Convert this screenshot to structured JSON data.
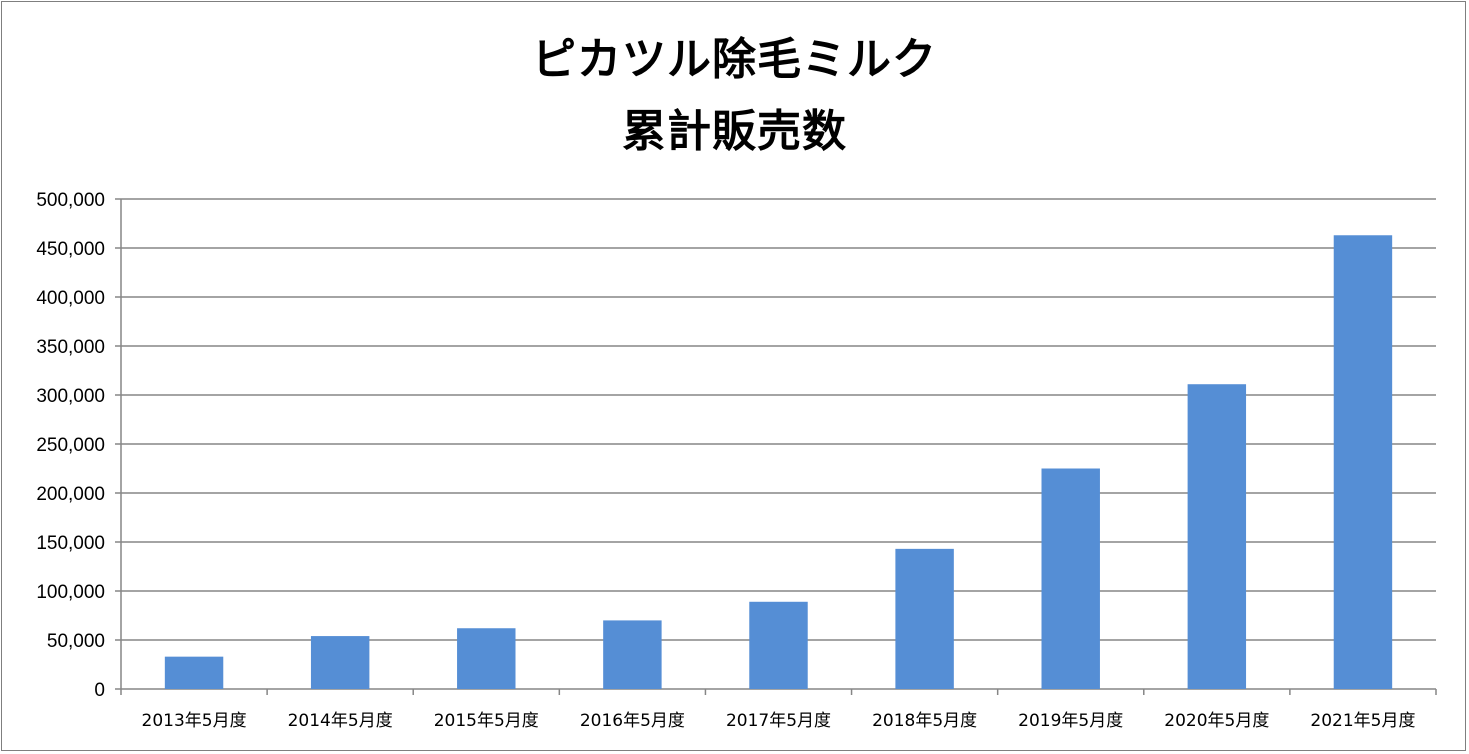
{
  "chart_data": {
    "type": "bar",
    "title_line1": "ピカツル除毛ミルク",
    "title_line2": "累計販売数",
    "categories": [
      "2013年5月度",
      "2014年5月度",
      "2015年5月度",
      "2016年5月度",
      "2017年5月度",
      "2018年5月度",
      "2019年5月度",
      "2020年5月度",
      "2021年5月度"
    ],
    "values": [
      33000,
      54000,
      62000,
      70000,
      89000,
      143000,
      225000,
      311000,
      463000
    ],
    "ylim": [
      0,
      500000
    ],
    "yticks": [
      "0",
      "50,000",
      "100,000",
      "150,000",
      "200,000",
      "250,000",
      "300,000",
      "350,000",
      "400,000",
      "450,000",
      "500,000"
    ],
    "grid": true,
    "bar_color": "#558ed5",
    "grid_color": "#868686"
  }
}
